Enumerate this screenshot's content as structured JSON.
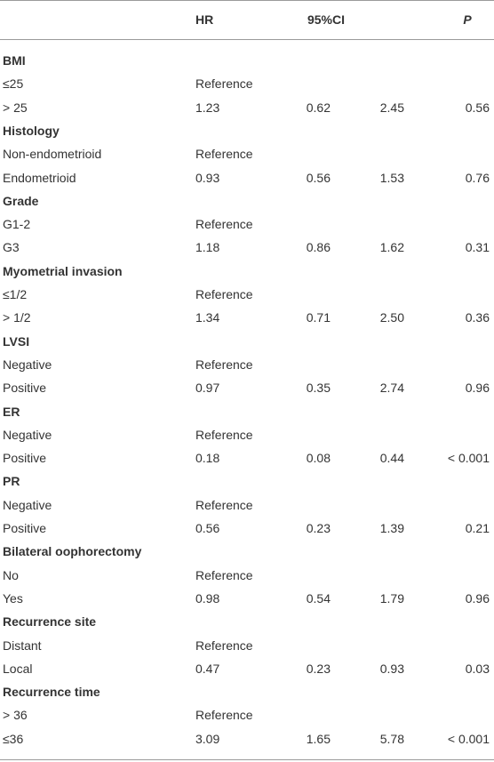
{
  "header": {
    "hr": "HR",
    "ci": "95%CI",
    "p": "P"
  },
  "sections": [
    {
      "title": "BMI",
      "rows": [
        {
          "label": "≤25",
          "hr": "Reference"
        },
        {
          "label": "> 25",
          "hr": "1.23",
          "ci_low": "0.62",
          "ci_high": "2.45",
          "p": "0.56"
        }
      ]
    },
    {
      "title": "Histology",
      "rows": [
        {
          "label": "Non-endometrioid",
          "hr": "Reference"
        },
        {
          "label": "Endometrioid",
          "hr": "0.93",
          "ci_low": "0.56",
          "ci_high": "1.53",
          "p": "0.76"
        }
      ]
    },
    {
      "title": "Grade",
      "rows": [
        {
          "label": "G1-2",
          "hr": "Reference"
        },
        {
          "label": "G3",
          "hr": "1.18",
          "ci_low": "0.86",
          "ci_high": "1.62",
          "p": "0.31"
        }
      ]
    },
    {
      "title": "Myometrial invasion",
      "rows": [
        {
          "label": "≤1/2",
          "hr": "Reference"
        },
        {
          "label": "> 1/2",
          "hr": "1.34",
          "ci_low": "0.71",
          "ci_high": "2.50",
          "p": "0.36"
        }
      ]
    },
    {
      "title": "LVSI",
      "rows": [
        {
          "label": "Negative",
          "hr": "Reference"
        },
        {
          "label": "Positive",
          "hr": "0.97",
          "ci_low": "0.35",
          "ci_high": "2.74",
          "p": "0.96"
        }
      ]
    },
    {
      "title": "ER",
      "rows": [
        {
          "label": "Negative",
          "hr": "Reference"
        },
        {
          "label": "Positive",
          "hr": "0.18",
          "ci_low": "0.08",
          "ci_high": "0.44",
          "p": "< 0.001"
        }
      ]
    },
    {
      "title": "PR",
      "rows": [
        {
          "label": "Negative",
          "hr": "Reference"
        },
        {
          "label": "Positive",
          "hr": "0.56",
          "ci_low": "0.23",
          "ci_high": "1.39",
          "p": "0.21"
        }
      ]
    },
    {
      "title": "Bilateral oophorectomy",
      "rows": [
        {
          "label": "No",
          "hr": "Reference"
        },
        {
          "label": "Yes",
          "hr": "0.98",
          "ci_low": "0.54",
          "ci_high": "1.79",
          "p": "0.96"
        }
      ]
    },
    {
      "title": "Recurrence site",
      "rows": [
        {
          "label": "Distant",
          "hr": "Reference"
        },
        {
          "label": "Local",
          "hr": "0.47",
          "ci_low": "0.23",
          "ci_high": "0.93",
          "p": "0.03"
        }
      ]
    },
    {
      "title": "Recurrence time",
      "rows": [
        {
          "label": "> 36",
          "hr": "Reference"
        },
        {
          "label": "≤36",
          "hr": "3.09",
          "ci_low": "1.65",
          "ci_high": "5.78",
          "p": "< 0.001"
        }
      ]
    }
  ]
}
